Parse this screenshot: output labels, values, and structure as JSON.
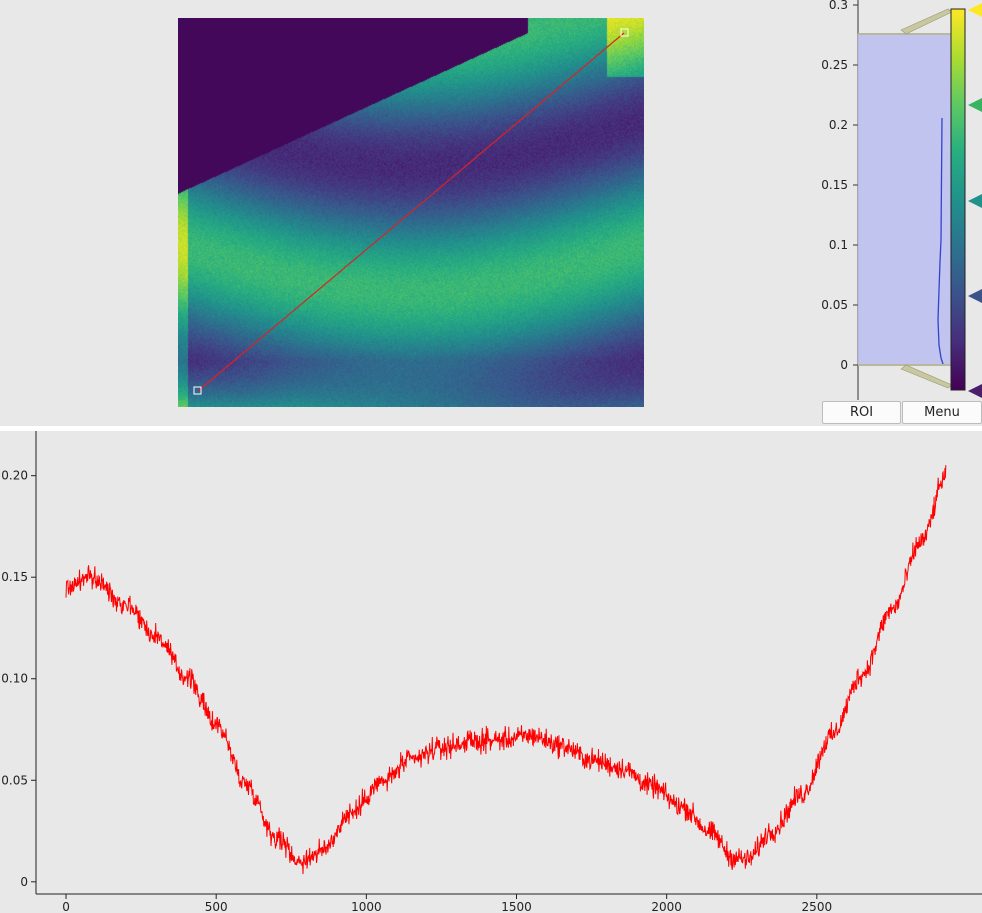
{
  "colors": {
    "background": "#e8e8e8",
    "profile_line": "#ff0000",
    "roi_line": "#dd2222",
    "histogram_fill": "#c0c4ee",
    "histogram_curve": "#3344cc",
    "viridis": [
      "#440154",
      "#472d7b",
      "#3b528b",
      "#2c728e",
      "#21918c",
      "#28ae80",
      "#5ec962",
      "#addc30",
      "#fde725"
    ]
  },
  "image_view": {
    "colormap": "viridis",
    "roi_handle_icons": [
      "square-handle-icon",
      "square-handle-icon"
    ]
  },
  "histogram": {
    "axis_ticks": [
      "0.3",
      "0.25",
      "0.2",
      "0.15",
      "0.1",
      "0.05",
      "0"
    ],
    "level_min": 0,
    "level_max": 0.275,
    "gradient_markers": [
      "yellow-triangle-icon",
      "green-triangle-icon",
      "teal-triangle-icon",
      "blue-triangle-icon",
      "purple-triangle-icon"
    ],
    "roi_button": "ROI",
    "menu_button": "Menu"
  },
  "chart_data": {
    "type": "line",
    "series": [
      {
        "color": "#ff0000"
      }
    ],
    "x_range": [
      0,
      2930
    ],
    "xlim": [
      -100,
      3050
    ],
    "ylim": [
      -0.006,
      0.222
    ],
    "x_ticks": [
      "0",
      "500",
      "1000",
      "1500",
      "2000",
      "2500"
    ],
    "y_ticks": [
      "0",
      "0.05",
      "0.10",
      "0.15",
      "0.20"
    ],
    "control_points": [
      [
        0,
        0.145
      ],
      [
        80,
        0.15
      ],
      [
        200,
        0.137
      ],
      [
        300,
        0.121
      ],
      [
        400,
        0.101
      ],
      [
        500,
        0.078
      ],
      [
        600,
        0.048
      ],
      [
        700,
        0.022
      ],
      [
        780,
        0.01
      ],
      [
        850,
        0.015
      ],
      [
        950,
        0.034
      ],
      [
        1050,
        0.049
      ],
      [
        1150,
        0.06
      ],
      [
        1250,
        0.066
      ],
      [
        1350,
        0.069
      ],
      [
        1450,
        0.07
      ],
      [
        1550,
        0.072
      ],
      [
        1650,
        0.067
      ],
      [
        1750,
        0.06
      ],
      [
        1850,
        0.056
      ],
      [
        1950,
        0.047
      ],
      [
        2050,
        0.037
      ],
      [
        2150,
        0.024
      ],
      [
        2220,
        0.012
      ],
      [
        2270,
        0.011
      ],
      [
        2350,
        0.025
      ],
      [
        2450,
        0.043
      ],
      [
        2550,
        0.072
      ],
      [
        2650,
        0.102
      ],
      [
        2750,
        0.134
      ],
      [
        2850,
        0.168
      ],
      [
        2930,
        0.2
      ]
    ],
    "noise_amplitude": 0.008,
    "grid": false
  }
}
